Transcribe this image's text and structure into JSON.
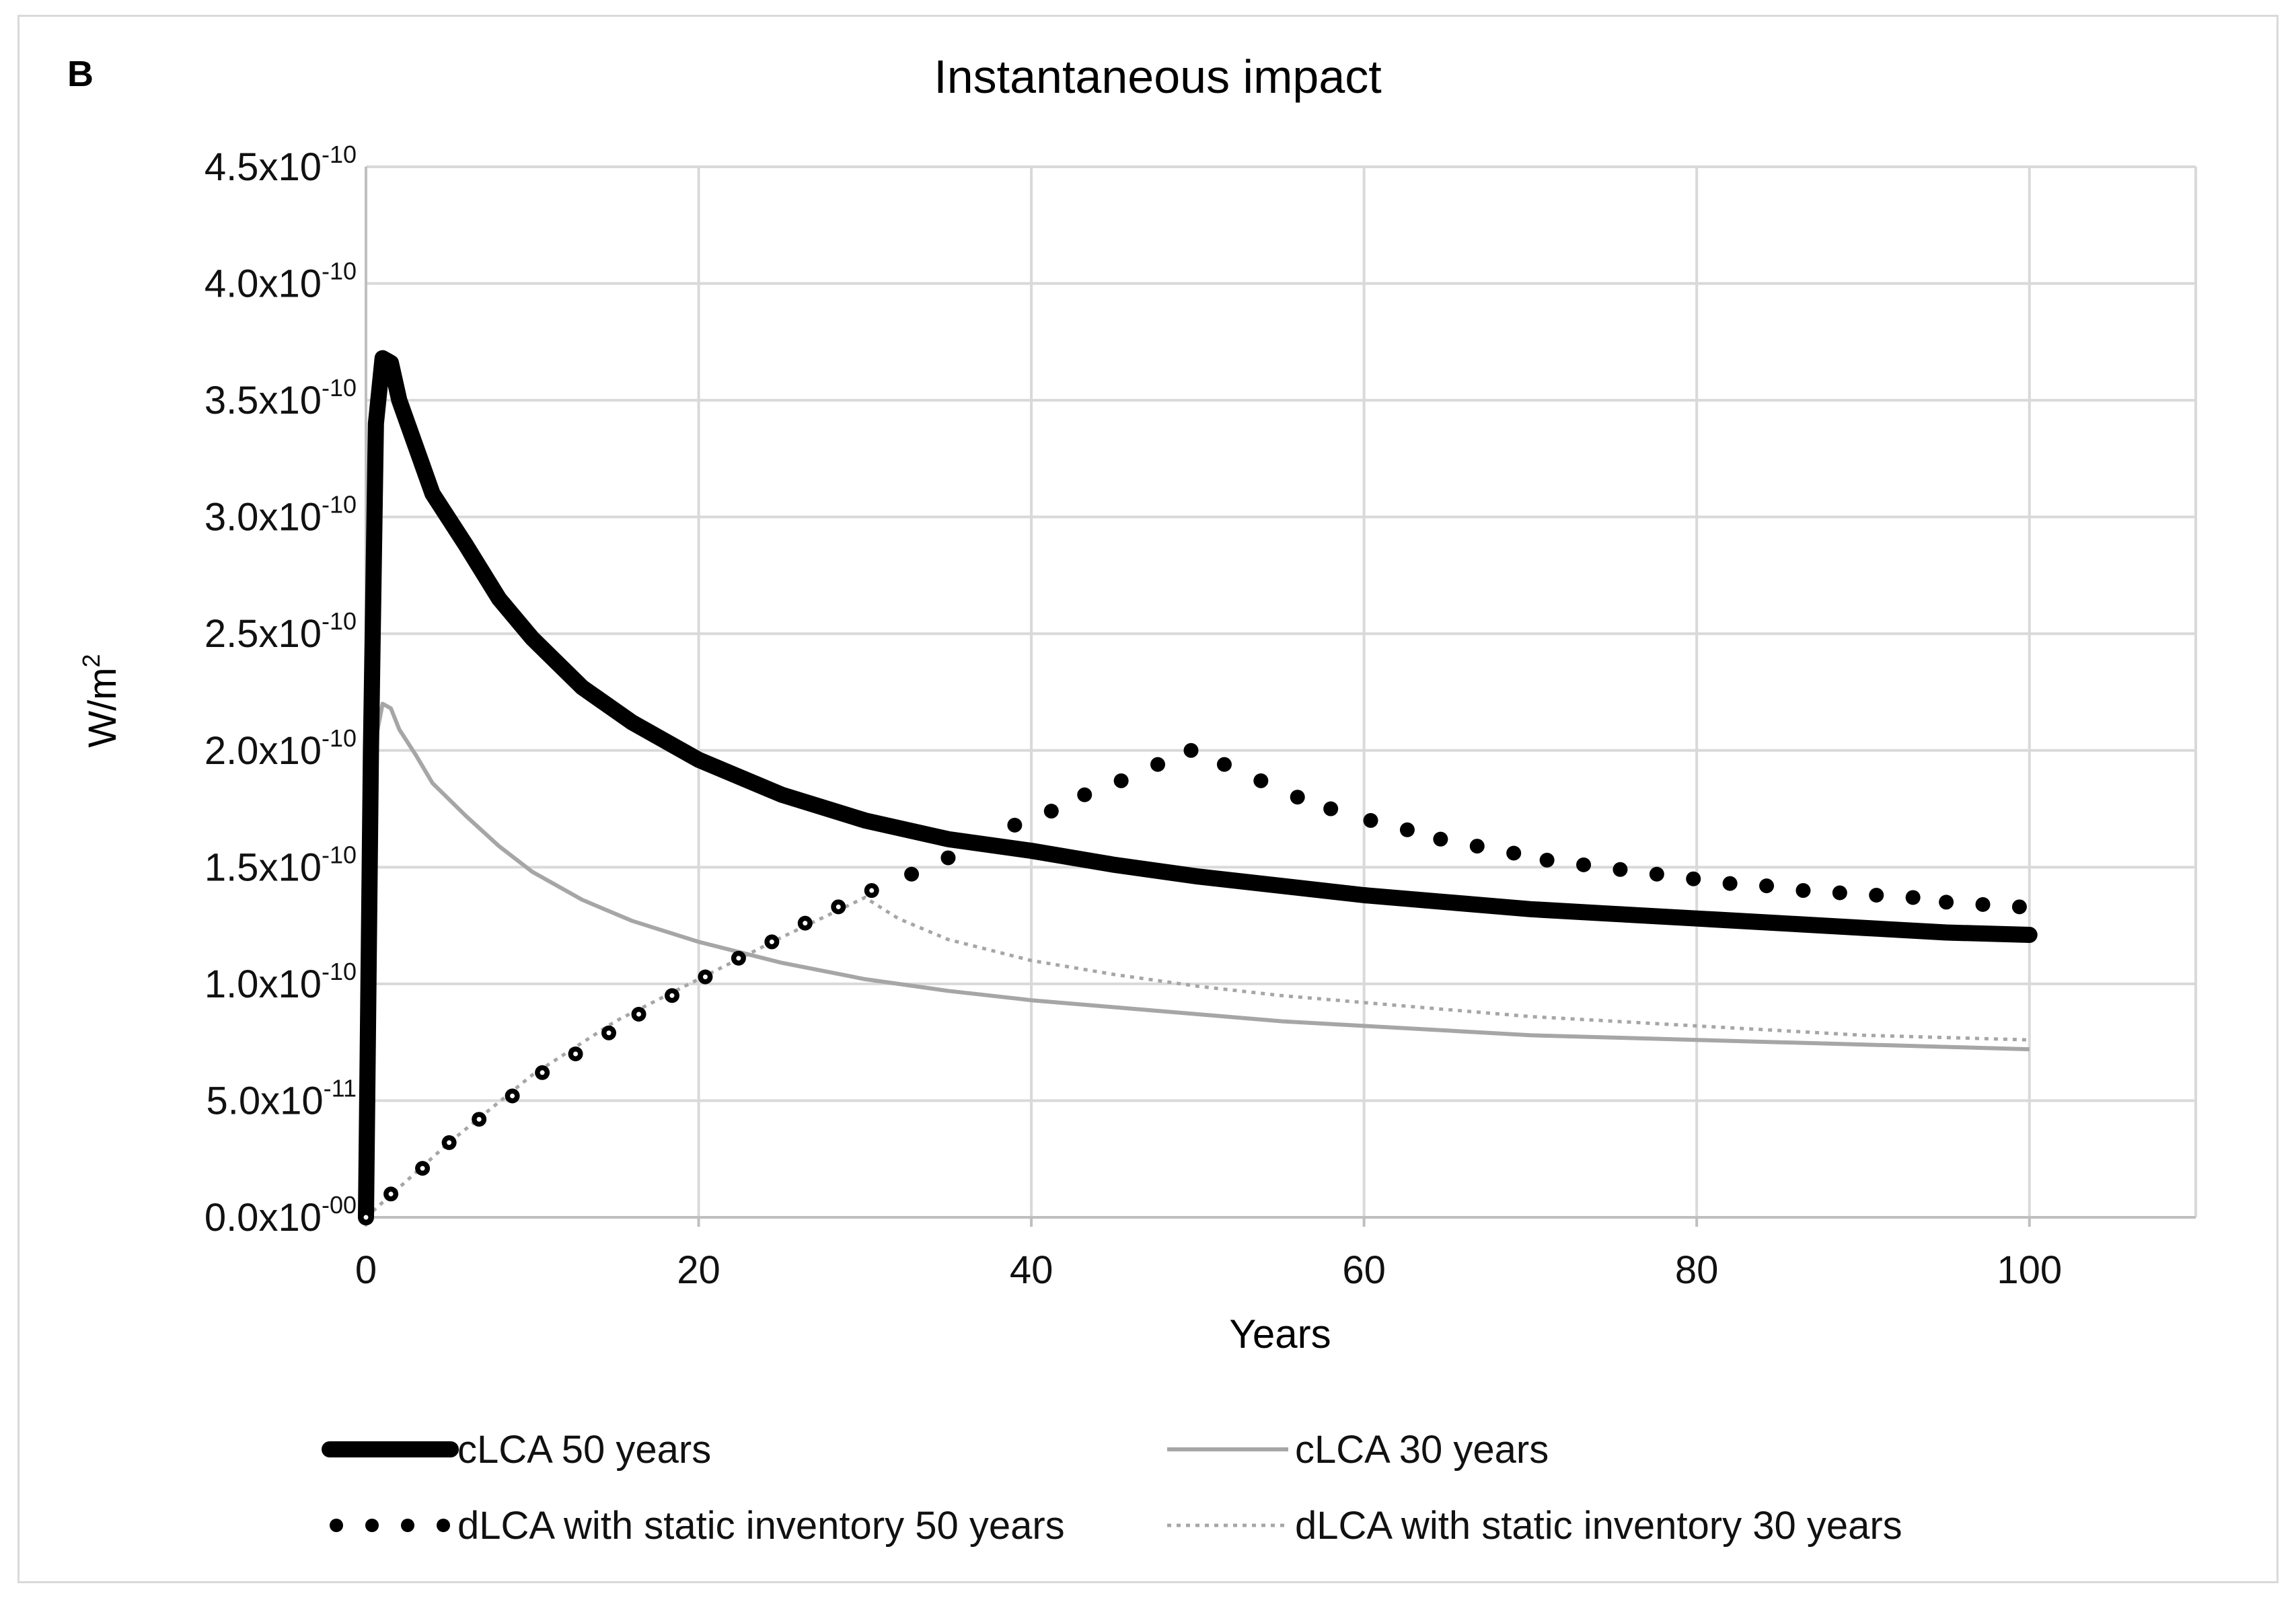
{
  "panel_label": "B",
  "chart_data": {
    "type": "line",
    "title": "Instantaneous impact",
    "xlabel": "Years",
    "ylabel_base": "W/m",
    "ylabel_sup": "2",
    "xlim": [
      0,
      110
    ],
    "ylim": [
      0,
      4.5e-10
    ],
    "grid": true,
    "legend_position": "bottom",
    "x_ticks": [
      {
        "value": 0,
        "label": "0"
      },
      {
        "value": 20,
        "label": "20"
      },
      {
        "value": 40,
        "label": "40"
      },
      {
        "value": 60,
        "label": "60"
      },
      {
        "value": 80,
        "label": "80"
      },
      {
        "value": 100,
        "label": "100"
      }
    ],
    "y_ticks": [
      {
        "value": 0,
        "base": "0.0x10",
        "exp": "-00"
      },
      {
        "value": 5e-11,
        "base": "5.0x10",
        "exp": "-11"
      },
      {
        "value": 1e-10,
        "base": "1.0x10",
        "exp": "-10"
      },
      {
        "value": 1.5e-10,
        "base": "1.5x10",
        "exp": "-10"
      },
      {
        "value": 2e-10,
        "base": "2.0x10",
        "exp": "-10"
      },
      {
        "value": 2.5e-10,
        "base": "2.5x10",
        "exp": "-10"
      },
      {
        "value": 3e-10,
        "base": "3.0x10",
        "exp": "-10"
      },
      {
        "value": 3.5e-10,
        "base": "3.5x10",
        "exp": "-10"
      },
      {
        "value": 4e-10,
        "base": "4.0x10",
        "exp": "-10"
      },
      {
        "value": 4.5e-10,
        "base": "4.5x10",
        "exp": "-10"
      }
    ],
    "series": [
      {
        "name": "cLCA 50 years",
        "style": "thick-solid",
        "color": "#000000",
        "x": [
          0,
          0.3,
          0.6,
          1,
          1.5,
          2,
          3,
          4,
          6,
          8,
          10,
          13,
          16,
          20,
          25,
          30,
          35,
          40,
          45,
          50,
          55,
          60,
          65,
          70,
          75,
          80,
          85,
          90,
          95,
          100
        ],
        "y": [
          0,
          2e-10,
          3.4e-10,
          3.68e-10,
          3.66e-10,
          3.5e-10,
          3.3e-10,
          3.1e-10,
          2.88e-10,
          2.65e-10,
          2.48e-10,
          2.27e-10,
          2.12e-10,
          1.96e-10,
          1.81e-10,
          1.7e-10,
          1.62e-10,
          1.57e-10,
          1.51e-10,
          1.46e-10,
          1.42e-10,
          1.38e-10,
          1.35e-10,
          1.32e-10,
          1.3e-10,
          1.28e-10,
          1.26e-10,
          1.24e-10,
          1.22e-10,
          1.21e-10
        ]
      },
      {
        "name": "cLCA 30 years",
        "style": "thin-solid",
        "color": "#a6a6a6",
        "x": [
          0,
          0.3,
          0.6,
          1,
          1.5,
          2,
          3,
          4,
          6,
          8,
          10,
          13,
          16,
          20,
          25,
          30,
          35,
          40,
          45,
          50,
          55,
          60,
          65,
          70,
          75,
          80,
          85,
          90,
          95,
          100
        ],
        "y": [
          0,
          1.3e-10,
          2.05e-10,
          2.2e-10,
          2.18e-10,
          2.09e-10,
          1.98e-10,
          1.86e-10,
          1.72e-10,
          1.59e-10,
          1.48e-10,
          1.36e-10,
          1.27e-10,
          1.18e-10,
          1.09e-10,
          1.02e-10,
          9.7e-11,
          9.3e-11,
          9e-11,
          8.7e-11,
          8.4e-11,
          8.2e-11,
          8e-11,
          7.8e-11,
          7.7e-11,
          7.6e-11,
          7.5e-11,
          7.4e-11,
          7.3e-11,
          7.2e-11
        ]
      },
      {
        "name": "dLCA with static inventory 50 years",
        "style": "dots",
        "color": "#000000",
        "x": [
          0,
          1.5,
          3.4,
          5,
          6.8,
          8.8,
          10.6,
          12.6,
          14.6,
          16.4,
          18.4,
          20.4,
          22.4,
          24.4,
          26.4,
          28.4,
          30.4,
          32.8,
          35,
          39,
          41.2,
          43.2,
          45.4,
          47.6,
          49.6,
          51.6,
          53.8,
          56,
          58,
          60.4,
          62.6,
          64.6,
          66.8,
          69,
          71,
          73.2,
          75.4,
          77.6,
          79.8,
          82,
          84.2,
          86.4,
          88.6,
          90.8,
          93,
          95,
          97.2,
          99.4
        ],
        "y": [
          0,
          1e-11,
          2.1e-11,
          3.2e-11,
          4.2e-11,
          5.2e-11,
          6.2e-11,
          7e-11,
          7.9e-11,
          8.7e-11,
          9.5e-11,
          1.03e-10,
          1.11e-10,
          1.18e-10,
          1.26e-10,
          1.33e-10,
          1.4e-10,
          1.47e-10,
          1.54e-10,
          1.68e-10,
          1.74e-10,
          1.81e-10,
          1.87e-10,
          1.94e-10,
          2e-10,
          1.94e-10,
          1.87e-10,
          1.8e-10,
          1.75e-10,
          1.7e-10,
          1.66e-10,
          1.62e-10,
          1.59e-10,
          1.56e-10,
          1.53e-10,
          1.51e-10,
          1.49e-10,
          1.47e-10,
          1.45e-10,
          1.43e-10,
          1.42e-10,
          1.4e-10,
          1.39e-10,
          1.38e-10,
          1.37e-10,
          1.35e-10,
          1.34e-10,
          1.33e-10
        ]
      },
      {
        "name": "dLCA with static inventory 30 years",
        "style": "dotted-line",
        "color": "#a6a6a6",
        "x": [
          0,
          5,
          10,
          15,
          20,
          25,
          30,
          32,
          35,
          40,
          45,
          50,
          55,
          60,
          65,
          70,
          75,
          80,
          85,
          90,
          95,
          100
        ],
        "y": [
          0,
          3.2e-11,
          6.1e-11,
          8.4e-11,
          1.02e-10,
          1.2e-10,
          1.37e-10,
          1.28e-10,
          1.19e-10,
          1.1e-10,
          1.04e-10,
          9.9e-11,
          9.5e-11,
          9.2e-11,
          8.9e-11,
          8.6e-11,
          8.4e-11,
          8.2e-11,
          8e-11,
          7.8e-11,
          7.7e-11,
          7.6e-11
        ]
      }
    ]
  }
}
